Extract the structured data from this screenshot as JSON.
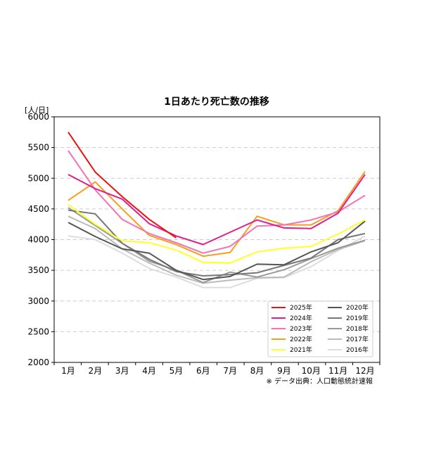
{
  "chart_data": {
    "type": "line",
    "title": "1日あたり死亡数の推移",
    "ylabel": "[人/日]",
    "source_note": "※ データ出典：人口動態統計速報",
    "categories": [
      "1月",
      "2月",
      "3月",
      "4月",
      "5月",
      "6月",
      "7月",
      "8月",
      "9月",
      "10月",
      "11月",
      "12月"
    ],
    "ylim": [
      2000,
      6000
    ],
    "yticks": [
      2000,
      2500,
      3000,
      3500,
      4000,
      4500,
      5000,
      5500,
      6000
    ],
    "grid": "horizontal-dashed",
    "legend_position": "bottom-right",
    "series": [
      {
        "name": "2025年",
        "color": "#ee1111",
        "values": [
          5750,
          5100,
          4700,
          4330,
          4030,
          null,
          null,
          null,
          null,
          null,
          null,
          null
        ]
      },
      {
        "name": "2024年",
        "color": "#e01e8c",
        "values": [
          5060,
          4830,
          4660,
          4260,
          4060,
          3920,
          4120,
          4320,
          4190,
          4180,
          4430,
          5060
        ]
      },
      {
        "name": "2023年",
        "color": "#f374b4",
        "values": [
          5450,
          4810,
          4330,
          4100,
          3950,
          3780,
          3890,
          4220,
          4240,
          4320,
          4450,
          4720
        ]
      },
      {
        "name": "2022年",
        "color": "#f5a01d",
        "values": [
          4640,
          4940,
          4500,
          4070,
          3920,
          3730,
          3790,
          4380,
          4240,
          4240,
          4470,
          5110
        ]
      },
      {
        "name": "2021年",
        "color": "#ffff2a",
        "values": [
          4570,
          4250,
          3980,
          3950,
          3830,
          3630,
          3620,
          3800,
          3860,
          3890,
          4090,
          4320
        ]
      },
      {
        "name": "2020年",
        "color": "#555555",
        "values": [
          4280,
          4050,
          3850,
          3780,
          3500,
          3350,
          3400,
          3600,
          3590,
          3800,
          3950,
          4300
        ]
      },
      {
        "name": "2019年",
        "color": "#777777",
        "values": [
          4480,
          4420,
          3940,
          3680,
          3480,
          3410,
          3430,
          3460,
          3580,
          3700,
          4000,
          4100
        ]
      },
      {
        "name": "2018年",
        "color": "#999999",
        "values": [
          4520,
          4230,
          3940,
          3650,
          3500,
          3300,
          3470,
          3390,
          3510,
          3690,
          3860,
          3990
        ]
      },
      {
        "name": "2017年",
        "color": "#bbbbbb",
        "values": [
          4380,
          4180,
          3850,
          3620,
          3420,
          3290,
          3340,
          3380,
          3390,
          3640,
          3840,
          3980
        ]
      },
      {
        "name": "2016年",
        "color": "#dddddd",
        "values": [
          4060,
          4000,
          3780,
          3530,
          3390,
          3220,
          3220,
          3370,
          3380,
          3560,
          3820,
          4060
        ]
      }
    ]
  }
}
